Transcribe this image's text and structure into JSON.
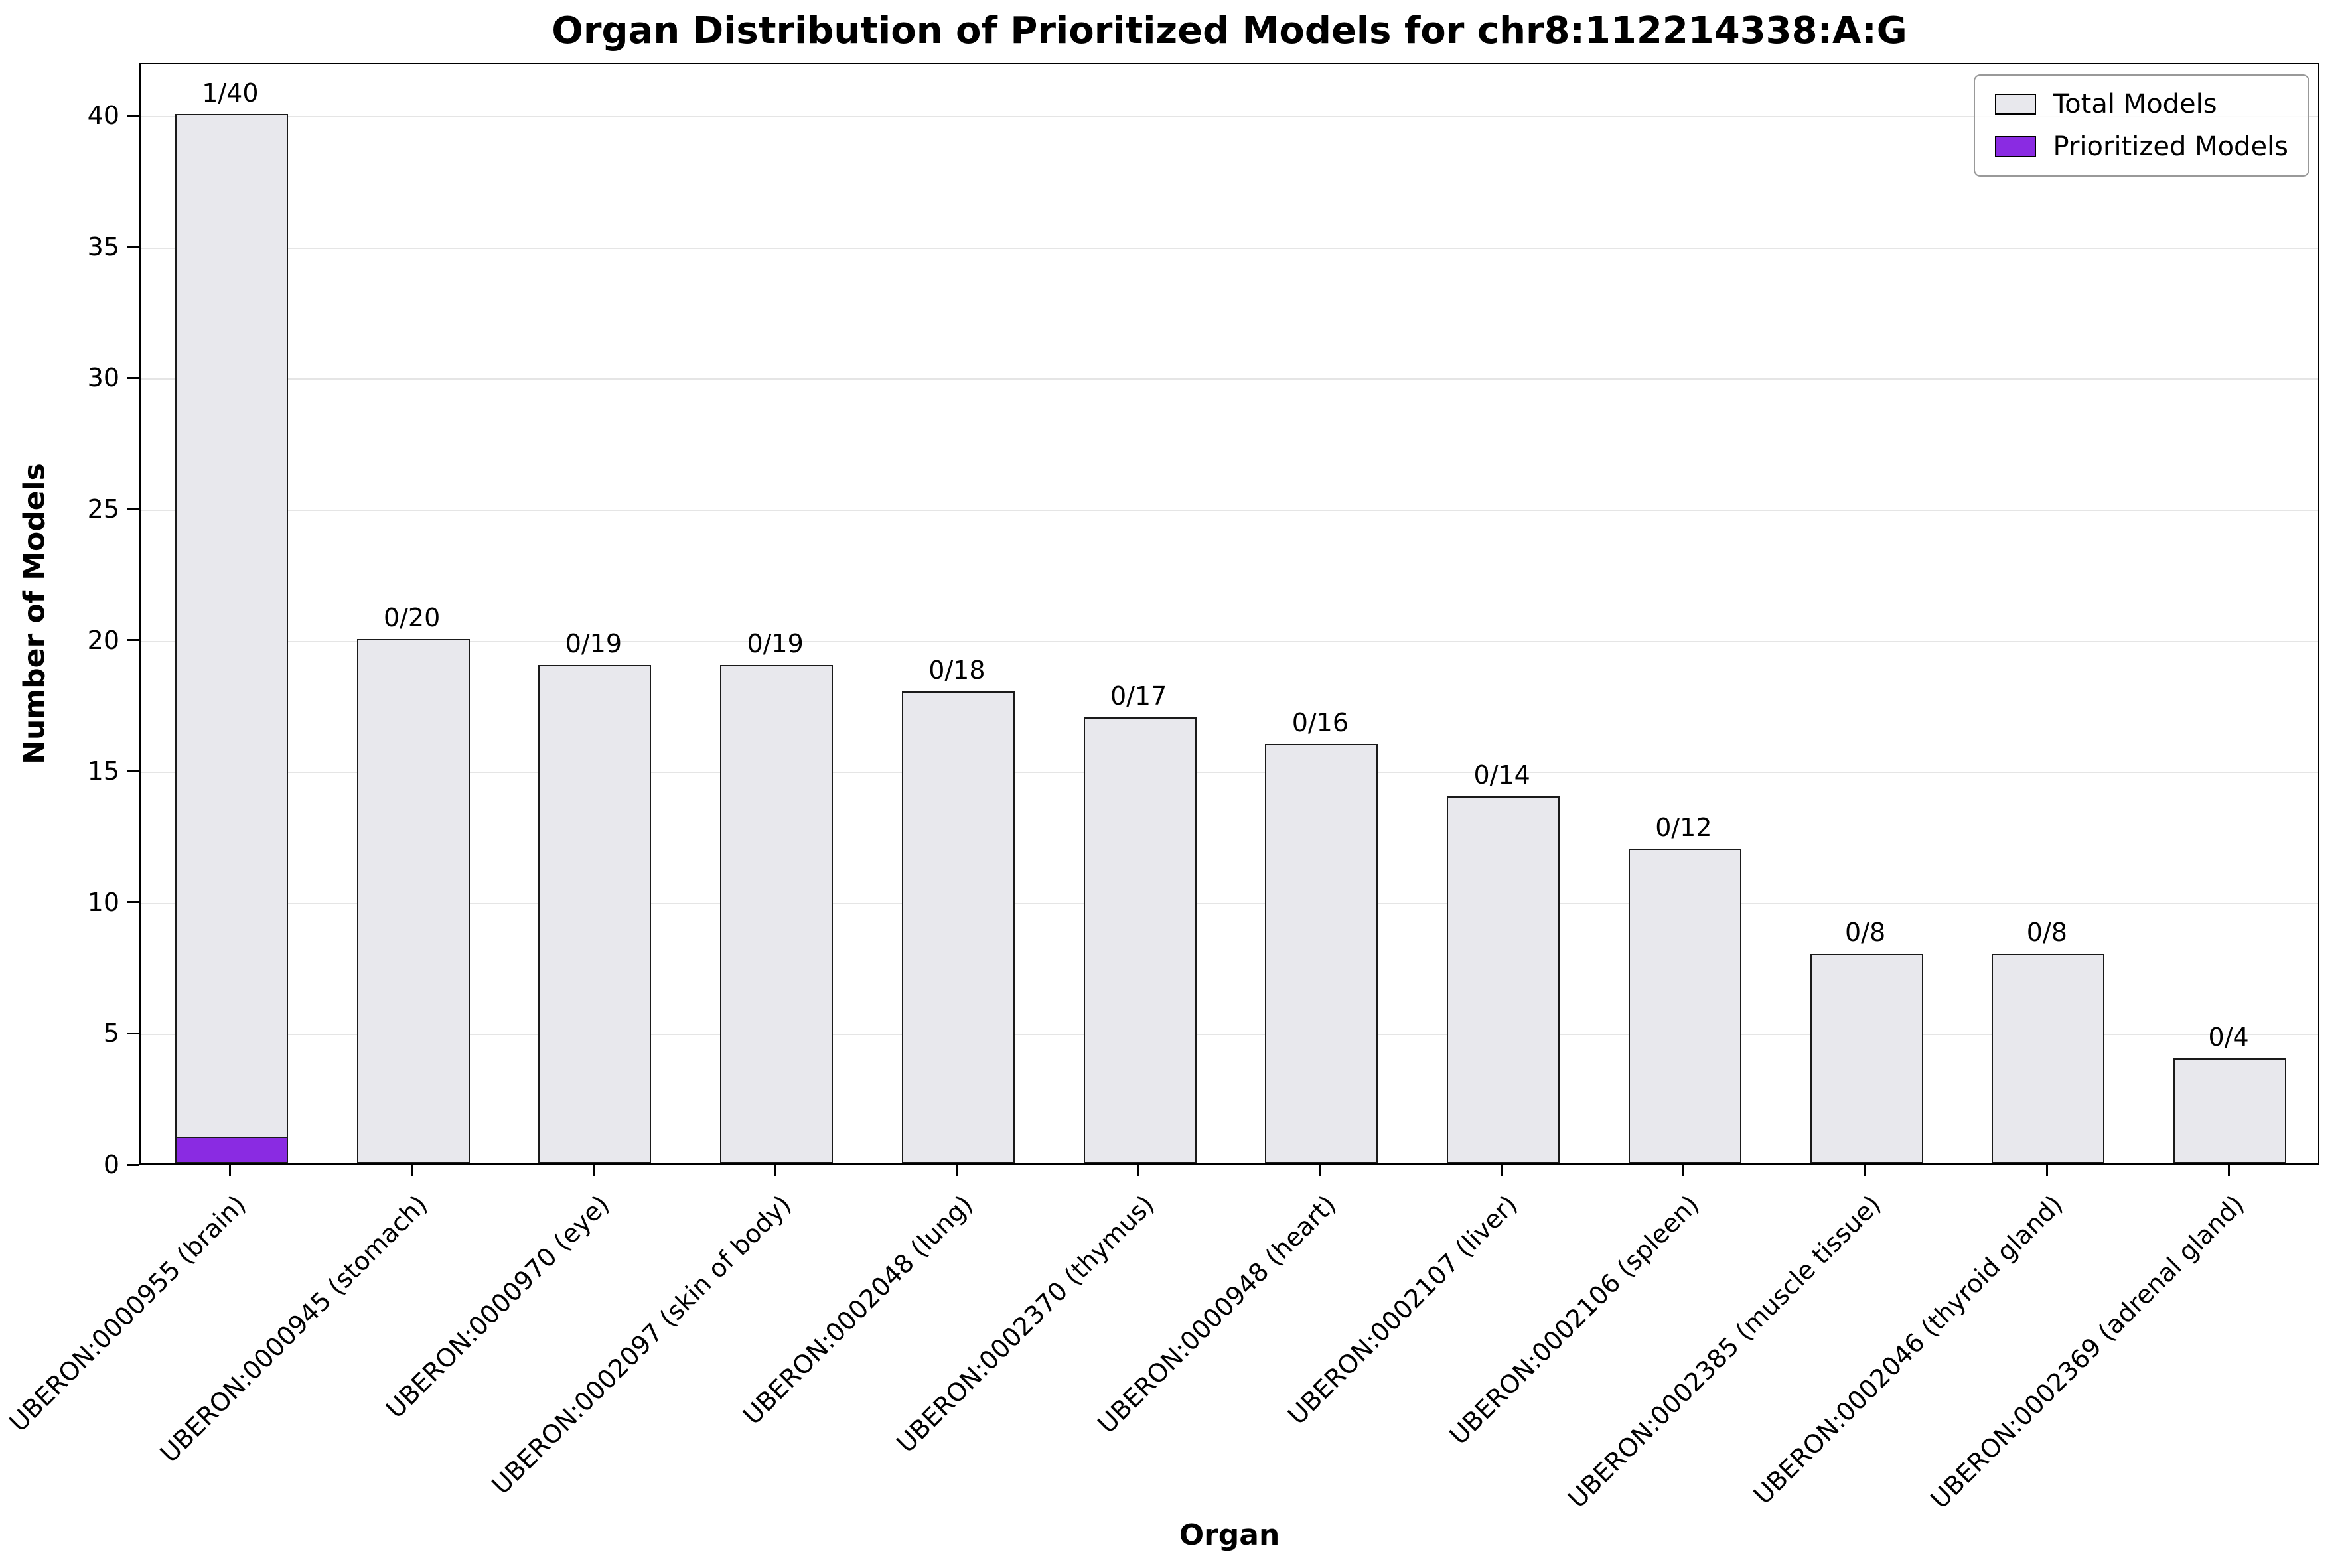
{
  "title": "Organ Distribution of Prioritized Models for chr8:112214338:A:G",
  "legend": {
    "total_label": "Total Models",
    "prioritized_label": "Prioritized Models"
  },
  "colors": {
    "total": "#e8e8ed",
    "prioritized": "#8A2BE2",
    "edge": "#000000",
    "grid": "#e5e5e5"
  },
  "chart_data": {
    "type": "bar",
    "title": "Organ Distribution of Prioritized Models for chr8:112214338:A:G",
    "xlabel": "Organ",
    "ylabel": "Number of Models",
    "ylim": [
      0,
      42
    ],
    "yticks": [
      0,
      5,
      10,
      15,
      20,
      25,
      30,
      35,
      40
    ],
    "grid": true,
    "legend_position": "upper right",
    "categories": [
      "UBERON:0000955 (brain)",
      "UBERON:0000945 (stomach)",
      "UBERON:0000970 (eye)",
      "UBERON:0002097 (skin of body)",
      "UBERON:0002048 (lung)",
      "UBERON:0002370 (thymus)",
      "UBERON:0000948 (heart)",
      "UBERON:0002107 (liver)",
      "UBERON:0002106 (spleen)",
      "UBERON:0002385 (muscle tissue)",
      "UBERON:0002046 (thyroid gland)",
      "UBERON:0002369 (adrenal gland)"
    ],
    "series": [
      {
        "name": "Total Models",
        "values": [
          40,
          20,
          19,
          19,
          18,
          17,
          16,
          14,
          12,
          8,
          8,
          4
        ]
      },
      {
        "name": "Prioritized Models",
        "values": [
          1,
          0,
          0,
          0,
          0,
          0,
          0,
          0,
          0,
          0,
          0,
          0
        ]
      }
    ],
    "annotations": [
      "1/40",
      "0/20",
      "0/19",
      "0/19",
      "0/18",
      "0/17",
      "0/16",
      "0/14",
      "0/12",
      "0/8",
      "0/8",
      "0/4"
    ]
  }
}
